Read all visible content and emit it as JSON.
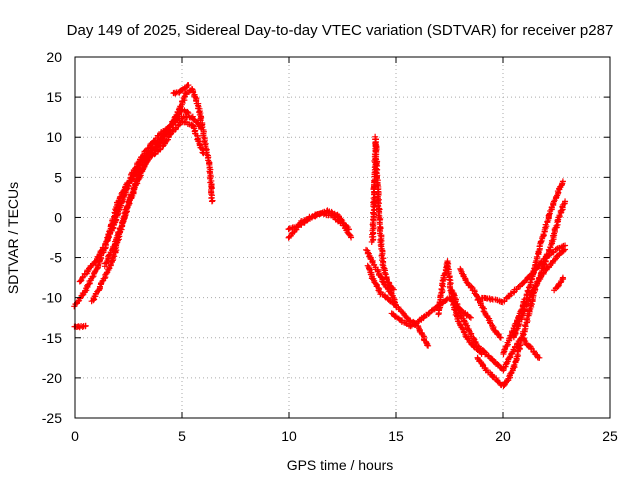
{
  "chart_data": {
    "type": "scatter",
    "title": "Day 149 of 2025, Sidereal Day-to-day VTEC variation (SDTVAR) for receiver p287",
    "xlabel": "GPS time / hours",
    "ylabel": "SDTVAR / TECUs",
    "xlim": [
      0,
      25
    ],
    "ylim": [
      -25,
      20
    ],
    "xticks": [
      "0",
      "5",
      "10",
      "15",
      "20",
      "25"
    ],
    "yticks": [
      "-25",
      "-20",
      "-15",
      "-10",
      "-5",
      "0",
      "5",
      "10",
      "15",
      "20"
    ],
    "grid": true,
    "marker": "+",
    "color": "#ff0000",
    "tracks": [
      [
        [
          0.0,
          -11
        ],
        [
          0.5,
          -9
        ],
        [
          1.0,
          -6.5
        ],
        [
          1.5,
          -3
        ],
        [
          2.0,
          2
        ],
        [
          2.5,
          4.5
        ],
        [
          3.0,
          7
        ],
        [
          3.5,
          9
        ],
        [
          4.0,
          10.5
        ],
        [
          4.5,
          11.5
        ],
        [
          5.0,
          12.5
        ],
        [
          5.5,
          12.5
        ],
        [
          5.9,
          11
        ]
      ],
      [
        [
          0.2,
          -8
        ],
        [
          0.8,
          -6
        ],
        [
          1.3,
          -4
        ],
        [
          1.8,
          -1
        ],
        [
          2.2,
          2
        ],
        [
          2.6,
          4.5
        ],
        [
          3.1,
          7
        ],
        [
          3.6,
          8.5
        ],
        [
          4.1,
          10
        ],
        [
          4.6,
          12
        ],
        [
          5.0,
          13.5
        ],
        [
          5.3,
          13
        ]
      ],
      [
        [
          0.8,
          -10.5
        ],
        [
          1.3,
          -8
        ],
        [
          1.8,
          -5
        ],
        [
          2.1,
          -2
        ],
        [
          2.4,
          1
        ],
        [
          2.7,
          3
        ],
        [
          3.0,
          5.5
        ],
        [
          3.5,
          7.5
        ],
        [
          4.0,
          8.5
        ],
        [
          4.5,
          10.5
        ],
        [
          5.0,
          12
        ],
        [
          5.5,
          11.5
        ],
        [
          6.0,
          8
        ]
      ],
      [
        [
          1.4,
          -6
        ],
        [
          1.9,
          -3
        ],
        [
          2.3,
          0
        ],
        [
          2.6,
          2.5
        ],
        [
          3.0,
          5
        ],
        [
          3.4,
          7.5
        ],
        [
          3.9,
          9
        ],
        [
          4.4,
          11
        ],
        [
          4.8,
          13
        ],
        [
          5.2,
          15.5
        ],
        [
          5.5,
          16
        ],
        [
          5.8,
          13.5
        ],
        [
          6.1,
          9
        ],
        [
          6.3,
          6.5
        ],
        [
          6.4,
          2
        ]
      ],
      [
        [
          9.95,
          -1.5
        ],
        [
          10.5,
          -1
        ],
        [
          11.0,
          0
        ],
        [
          11.5,
          0.5
        ],
        [
          12.0,
          0.2
        ],
        [
          12.5,
          -0.8
        ],
        [
          12.9,
          -2.5
        ]
      ],
      [
        [
          10.0,
          -2.5
        ],
        [
          10.6,
          -0.5
        ],
        [
          11.2,
          0.3
        ],
        [
          11.8,
          0.8
        ],
        [
          12.3,
          0.2
        ],
        [
          12.8,
          -1.5
        ]
      ],
      [
        [
          13.9,
          -3
        ],
        [
          13.95,
          0
        ],
        [
          14.0,
          5
        ],
        [
          14.05,
          10
        ],
        [
          14.1,
          6
        ],
        [
          14.2,
          1
        ],
        [
          14.3,
          -3
        ],
        [
          14.4,
          -6
        ],
        [
          14.6,
          -8
        ],
        [
          14.9,
          -9
        ]
      ],
      [
        [
          13.6,
          -4
        ],
        [
          13.8,
          -5
        ],
        [
          14.0,
          -6
        ],
        [
          14.2,
          -7
        ],
        [
          14.5,
          -8.5
        ],
        [
          14.8,
          -9.5
        ],
        [
          15.0,
          -11
        ]
      ],
      [
        [
          13.7,
          -6
        ],
        [
          13.9,
          -7.5
        ],
        [
          14.1,
          -8.5
        ],
        [
          14.3,
          -9.5
        ],
        [
          14.6,
          -10
        ],
        [
          15.0,
          -11
        ],
        [
          15.5,
          -12.5
        ],
        [
          16.0,
          -13.5
        ],
        [
          16.3,
          -15
        ],
        [
          16.5,
          -16
        ]
      ],
      [
        [
          14.8,
          -12
        ],
        [
          15.3,
          -13
        ],
        [
          15.7,
          -13.5
        ],
        [
          16.0,
          -13
        ],
        [
          16.5,
          -12
        ],
        [
          17.0,
          -11
        ],
        [
          17.5,
          -10
        ],
        [
          18.0,
          -11.5
        ],
        [
          18.5,
          -12.5
        ]
      ],
      [
        [
          17.0,
          -12
        ],
        [
          17.2,
          -8
        ],
        [
          17.4,
          -5.5
        ],
        [
          17.6,
          -10
        ],
        [
          17.8,
          -12
        ],
        [
          18.0,
          -13.5
        ],
        [
          18.3,
          -15
        ],
        [
          18.6,
          -16
        ],
        [
          19.0,
          -17
        ]
      ],
      [
        [
          18.0,
          -6.5
        ],
        [
          18.3,
          -8
        ],
        [
          18.6,
          -9
        ],
        [
          19.0,
          -11
        ],
        [
          19.3,
          -12.5
        ],
        [
          19.6,
          -14
        ],
        [
          19.9,
          -15
        ]
      ],
      [
        [
          17.6,
          -9
        ],
        [
          18.0,
          -12
        ],
        [
          18.4,
          -14
        ],
        [
          18.8,
          -16
        ],
        [
          19.2,
          -17
        ],
        [
          19.6,
          -18
        ],
        [
          20.0,
          -19
        ],
        [
          20.3,
          -17.5
        ],
        [
          20.6,
          -16
        ],
        [
          20.9,
          -15
        ],
        [
          21.2,
          -16
        ],
        [
          21.5,
          -17
        ],
        [
          21.7,
          -17.5
        ]
      ],
      [
        [
          18.8,
          -17.5
        ],
        [
          19.2,
          -19
        ],
        [
          19.6,
          -20
        ],
        [
          20.0,
          -21
        ],
        [
          20.3,
          -20
        ],
        [
          20.6,
          -18
        ],
        [
          20.9,
          -15
        ],
        [
          21.2,
          -12
        ],
        [
          21.5,
          -9
        ],
        [
          21.9,
          -6
        ],
        [
          22.3,
          -3
        ],
        [
          22.6,
          0
        ],
        [
          22.9,
          2
        ]
      ],
      [
        [
          20.0,
          -17
        ],
        [
          20.4,
          -14.5
        ],
        [
          20.8,
          -12
        ],
        [
          21.2,
          -9
        ],
        [
          21.6,
          -5
        ],
        [
          22.0,
          -1
        ],
        [
          22.4,
          2
        ],
        [
          22.8,
          4.5
        ]
      ],
      [
        [
          20.5,
          -15
        ],
        [
          21.0,
          -11.5
        ],
        [
          21.5,
          -8.5
        ],
        [
          22.0,
          -6.5
        ],
        [
          22.5,
          -5
        ],
        [
          22.9,
          -4
        ]
      ],
      [
        [
          19.0,
          -10
        ],
        [
          19.5,
          -10.2
        ],
        [
          20.0,
          -10.5
        ],
        [
          21.0,
          -8
        ],
        [
          21.5,
          -6.5
        ],
        [
          22.0,
          -5
        ],
        [
          22.5,
          -4
        ],
        [
          22.9,
          -3.5
        ]
      ],
      [
        [
          22.4,
          -9
        ],
        [
          22.6,
          -8.5
        ],
        [
          22.8,
          -7.5
        ]
      ],
      [
        [
          0.0,
          -13.6
        ],
        [
          0.2,
          -13.6
        ],
        [
          0.4,
          -13.6
        ],
        [
          0.5,
          -13.5
        ]
      ],
      [
        [
          4.6,
          15.5
        ],
        [
          4.8,
          15.5
        ],
        [
          5.0,
          15.8
        ],
        [
          5.3,
          16.5
        ]
      ]
    ]
  }
}
